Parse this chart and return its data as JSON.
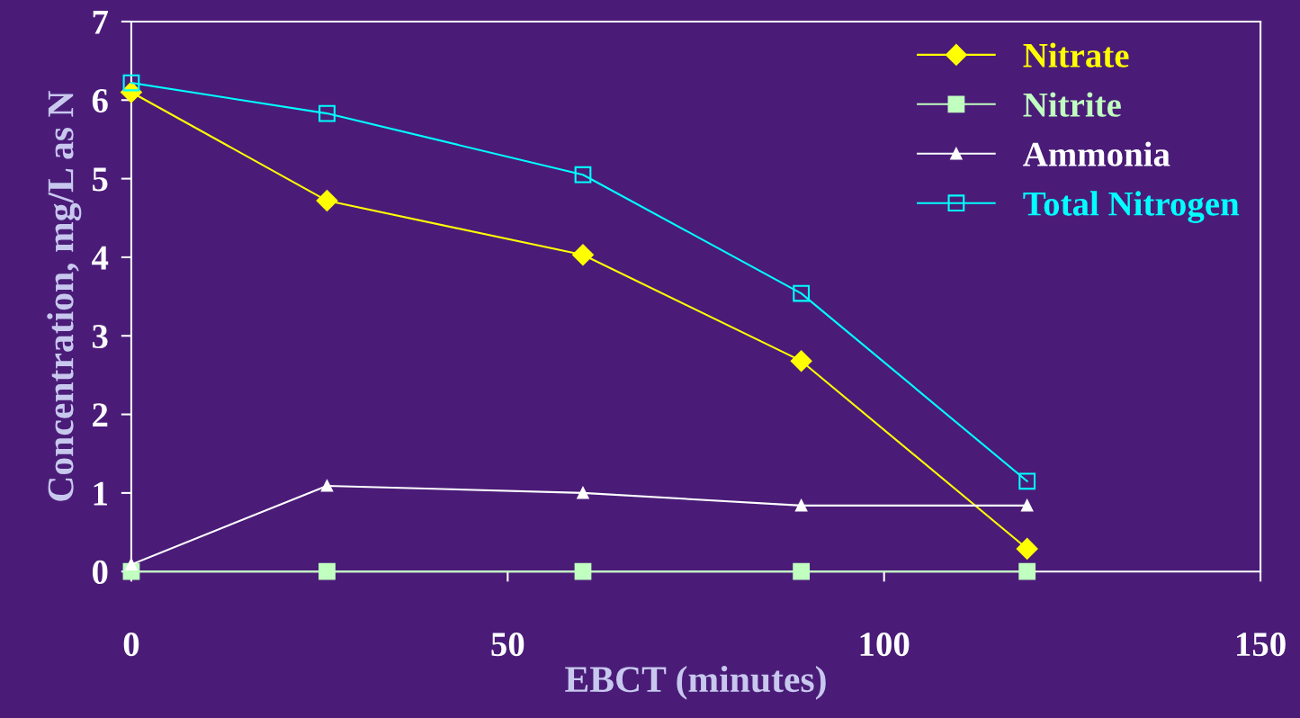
{
  "chart_data": {
    "type": "line",
    "xlabel": "EBCT (minutes)",
    "ylabel": "Concentration, mg/L as N",
    "x": [
      0,
      26,
      60,
      89,
      119
    ],
    "series": [
      {
        "name": "Nitrate",
        "color": "#ffff00",
        "marker": "diamond",
        "values": [
          6.1,
          4.72,
          4.03,
          2.68,
          0.29
        ]
      },
      {
        "name": "Nitrite",
        "color": "#c0ffc0",
        "marker": "square",
        "values": [
          0,
          0,
          0,
          0,
          0
        ]
      },
      {
        "name": "Ammonia",
        "color": "#ffffff",
        "marker": "triangle",
        "values": [
          0.09,
          1.09,
          1.0,
          0.84,
          0.84
        ]
      },
      {
        "name": "Total Nitrogen",
        "color": "#00ffff",
        "marker": "square",
        "values": [
          6.22,
          5.83,
          5.05,
          3.54,
          1.15
        ]
      }
    ],
    "xlim": [
      0,
      150
    ],
    "xticks": [
      0,
      50,
      100,
      150
    ],
    "ylim": [
      0,
      7
    ],
    "yticks": [
      0,
      1,
      2,
      3,
      4,
      5,
      6,
      7
    ],
    "grid": false,
    "legend": "top right",
    "line_style": "solid"
  }
}
